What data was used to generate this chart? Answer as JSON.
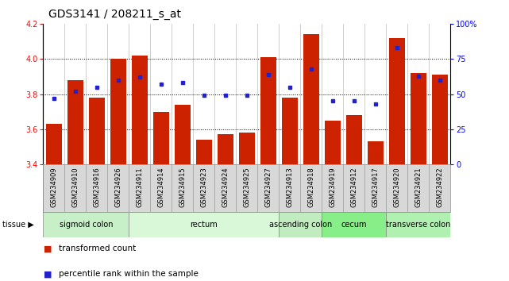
{
  "title": "GDS3141 / 208211_s_at",
  "samples": [
    "GSM234909",
    "GSM234910",
    "GSM234916",
    "GSM234926",
    "GSM234911",
    "GSM234914",
    "GSM234915",
    "GSM234923",
    "GSM234924",
    "GSM234925",
    "GSM234927",
    "GSM234913",
    "GSM234918",
    "GSM234919",
    "GSM234912",
    "GSM234917",
    "GSM234920",
    "GSM234921",
    "GSM234922"
  ],
  "bar_values": [
    3.63,
    3.88,
    3.78,
    4.0,
    4.02,
    3.7,
    3.74,
    3.54,
    3.57,
    3.58,
    4.01,
    3.78,
    4.14,
    3.65,
    3.68,
    3.53,
    4.12,
    3.92,
    3.91
  ],
  "percentile_values": [
    47,
    52,
    55,
    60,
    62,
    57,
    58,
    49,
    49,
    49,
    64,
    55,
    68,
    45,
    45,
    43,
    83,
    63,
    60
  ],
  "ymin": 3.4,
  "ymax": 4.2,
  "yticks": [
    3.4,
    3.6,
    3.8,
    4.0,
    4.2
  ],
  "right_yticks": [
    0,
    25,
    50,
    75,
    100
  ],
  "bar_color": "#cc2200",
  "dot_color": "#2222cc",
  "tissue_groups": [
    {
      "label": "sigmoid colon",
      "start": 0,
      "end": 4,
      "color": "#c8f0c8"
    },
    {
      "label": "rectum",
      "start": 4,
      "end": 11,
      "color": "#d8f8d8"
    },
    {
      "label": "ascending colon",
      "start": 11,
      "end": 13,
      "color": "#c0ecc0"
    },
    {
      "label": "cecum",
      "start": 13,
      "end": 16,
      "color": "#88ee88"
    },
    {
      "label": "transverse colon",
      "start": 16,
      "end": 19,
      "color": "#b0f0b0"
    }
  ],
  "bg_color": "#ffffff",
  "title_fontsize": 10,
  "tick_fontsize": 7,
  "gsm_fontsize": 6,
  "tissue_fontsize": 7,
  "legend_fontsize": 7.5
}
